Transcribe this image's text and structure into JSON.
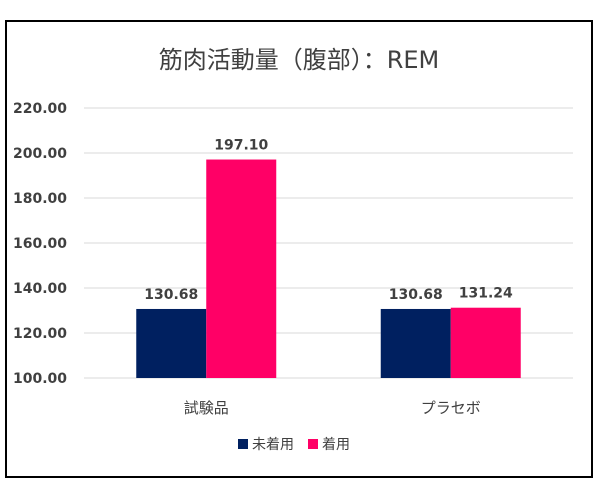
{
  "chart_data": {
    "type": "bar",
    "title": "筋肉活動量（腹部）：REM",
    "categories": [
      "試験品",
      "プラセボ"
    ],
    "series": [
      {
        "name": "未着用",
        "color": "#002060",
        "values": [
          130.68,
          130.68
        ]
      },
      {
        "name": "着用",
        "color": "#ff0066",
        "values": [
          197.1,
          131.24
        ]
      }
    ],
    "data_labels": [
      [
        "130.68",
        "130.68"
      ],
      [
        "197.10",
        "131.24"
      ]
    ],
    "ylim": [
      100,
      220
    ],
    "yticks": [
      "100.00",
      "120.00",
      "140.00",
      "160.00",
      "180.00",
      "200.00",
      "220.00"
    ],
    "ytick_values": [
      100,
      120,
      140,
      160,
      180,
      200,
      220
    ],
    "grid": true,
    "legend_position": "bottom"
  }
}
